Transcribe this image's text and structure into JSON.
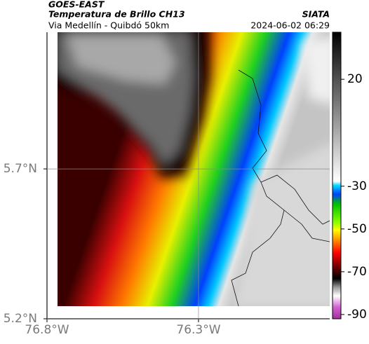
{
  "header": {
    "title": "GOES-EAST",
    "subtitle": "Temperatura de Brillo CH13",
    "source": "SIATA",
    "route": "Via Medellín - Quibdó 50km",
    "timestamp": "2024-06-02 06:29"
  },
  "map": {
    "lon_lim": [
      -76.8,
      -75.867
    ],
    "lat_lim": [
      5.2,
      6.156
    ],
    "lon_ticks": [
      {
        "value": -76.8,
        "label": "76.8°W"
      },
      {
        "value": -76.3,
        "label": "76.3°W"
      }
    ],
    "lat_ticks": [
      {
        "value": 5.2,
        "label": "5.2°N"
      },
      {
        "value": 5.7,
        "label": "5.7°N"
      }
    ]
  },
  "colorbar": {
    "lim": [
      -92,
      42
    ],
    "ticks": [
      20,
      -30,
      -50,
      -70,
      -90
    ]
  }
}
